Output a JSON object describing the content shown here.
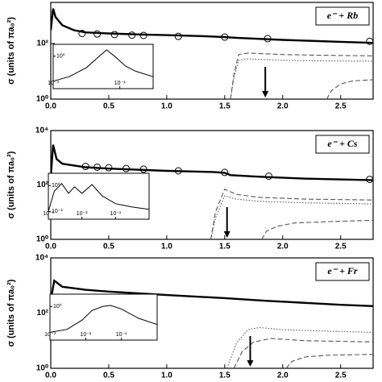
{
  "chart_data": [
    {
      "type": "line",
      "title": "e⁻ + Rb",
      "ylabel": "σ (units of πa₀²)",
      "log_scale": true,
      "xlim": [
        0,
        2.78
      ],
      "xticks": [
        {
          "value": 0,
          "label": "0.0"
        },
        0.5,
        {
          "value": 1,
          "label": "1.0"
        },
        1.5,
        {
          "value": 2,
          "label": "2.0"
        },
        2.5
      ],
      "ylim": [
        1,
        3000
      ],
      "yticks": [
        {
          "value": 1,
          "label": "10⁰"
        },
        {
          "value": 100,
          "label": "10²"
        }
      ],
      "series": [
        {
          "style": "thick",
          "color": "#000000",
          "x": [
            0,
            0.02,
            0.04,
            0.1,
            0.2,
            0.3,
            0.5,
            0.8,
            1.0,
            1.3,
            1.5,
            1.6,
            2.0,
            2.5,
            2.78
          ],
          "values": [
            300,
            1800,
            900,
            450,
            300,
            250,
            230,
            210,
            200,
            185,
            170,
            160,
            135,
            115,
            105
          ]
        },
        {
          "style": "circles",
          "color": "#000000",
          "x": [
            0.27,
            0.4,
            0.55,
            0.7,
            0.8,
            1.1,
            1.5,
            1.87,
            2.75
          ],
          "values": [
            230,
            220,
            210,
            200,
            195,
            180,
            170,
            150,
            120
          ]
        },
        {
          "style": "dashed",
          "color": "#555555",
          "x": [
            1.55,
            1.58,
            1.62,
            1.7,
            2.0,
            2.3,
            2.78
          ],
          "values": [
            1,
            8,
            40,
            45,
            40,
            38,
            36
          ]
        },
        {
          "style": "dotted",
          "color": "#555555",
          "x": [
            1.55,
            1.58,
            1.62,
            1.7,
            2.0,
            2.3,
            2.78
          ],
          "values": [
            1,
            6,
            25,
            28,
            25,
            24,
            23
          ]
        },
        {
          "style": "dashed",
          "color": "#555555",
          "x": [
            2.38,
            2.42,
            2.5,
            2.6,
            2.78
          ],
          "values": [
            1,
            2,
            3.5,
            4.5,
            5
          ]
        }
      ],
      "arrow": {
        "x": 1.85
      },
      "inset": {
        "xlim": [
          0.001,
          1
        ],
        "xticks": [
          {
            "value": 0.001,
            "label": "10⁻³"
          },
          {
            "value": 0.1,
            "label": "10⁻¹"
          }
        ],
        "ylim": [
          0.05,
          3
        ],
        "yticks": [
          {
            "value": 1,
            "label": "10⁰"
          }
        ],
        "x": [
          0.001,
          0.003,
          0.01,
          0.02,
          0.04,
          0.07,
          0.15,
          0.3,
          1
        ],
        "values": [
          0.1,
          0.15,
          0.35,
          0.8,
          1.8,
          1,
          0.4,
          0.25,
          0.15
        ]
      }
    },
    {
      "type": "line",
      "title": "e⁻ + Cs",
      "ylabel": "σ (units of πa₀²)",
      "log_scale": true,
      "xlim": [
        0,
        2.78
      ],
      "xticks": [
        {
          "value": 0,
          "label": "0.0"
        },
        0.5,
        {
          "value": 1,
          "label": "1.0"
        },
        1.5,
        {
          "value": 2,
          "label": "2.0"
        },
        2.5
      ],
      "ylim": [
        1,
        10000
      ],
      "yticks": [
        {
          "value": 1,
          "label": "10⁰"
        },
        {
          "value": 100,
          "label": "10²"
        },
        {
          "value": 10000,
          "label": "10⁴"
        }
      ],
      "series": [
        {
          "style": "thick",
          "color": "#000000",
          "x": [
            0,
            0.02,
            0.05,
            0.1,
            0.3,
            0.5,
            1.0,
            1.4,
            1.5,
            1.55,
            1.8,
            2.2,
            2.78
          ],
          "values": [
            200,
            3000,
            900,
            600,
            450,
            400,
            330,
            300,
            280,
            230,
            200,
            170,
            150
          ]
        },
        {
          "style": "circles",
          "color": "#000000",
          "x": [
            0.3,
            0.4,
            0.5,
            0.65,
            0.8,
            1.1,
            1.5,
            1.88,
            2.75
          ],
          "values": [
            480,
            450,
            430,
            400,
            380,
            330,
            290,
            210,
            160
          ]
        },
        {
          "style": "dashed",
          "color": "#555555",
          "x": [
            1.38,
            1.42,
            1.5,
            1.6,
            1.8,
            2.2,
            2.78
          ],
          "values": [
            1,
            10,
            70,
            45,
            35,
            30,
            28
          ]
        },
        {
          "style": "dotted",
          "color": "#555555",
          "x": [
            1.38,
            1.42,
            1.5,
            1.6,
            1.8,
            2.2,
            2.78
          ],
          "values": [
            1,
            6,
            40,
            30,
            25,
            22,
            20
          ]
        },
        {
          "style": "dashed",
          "color": "#555555",
          "x": [
            1.82,
            1.86,
            1.95,
            2.1,
            2.4,
            2.78
          ],
          "values": [
            1,
            2,
            3,
            4,
            4.5,
            5
          ]
        }
      ],
      "arrow": {
        "x": 1.52
      },
      "inset": {
        "xlim": [
          0.001,
          1
        ],
        "xticks": [
          {
            "value": 0.001,
            "label": "10⁻³"
          },
          {
            "value": 0.01,
            "label": "10⁻²"
          },
          {
            "value": 0.1,
            "label": "10⁻¹"
          }
        ],
        "ylim": [
          0.05,
          3
        ],
        "yticks": [
          {
            "value": 0.1,
            "label": "10⁻¹"
          },
          {
            "value": 1,
            "label": "10⁰"
          }
        ],
        "x": [
          0.001,
          0.0015,
          0.0025,
          0.004,
          0.006,
          0.01,
          0.02,
          0.04,
          0.1,
          0.3,
          1
        ],
        "values": [
          0.1,
          0.6,
          1.2,
          0.5,
          0.9,
          0.5,
          1.1,
          0.4,
          0.2,
          0.15,
          0.12
        ]
      }
    },
    {
      "type": "line",
      "title": "e⁻ + Fr",
      "ylabel": "σ (units of πa₀²)",
      "log_scale": true,
      "xlim": [
        0,
        2.78
      ],
      "xticks": [
        {
          "value": 0,
          "label": "0.0"
        },
        0.5,
        {
          "value": 1,
          "label": "1.0"
        },
        1.5,
        {
          "value": 2,
          "label": "2.0"
        },
        2.5
      ],
      "ylim": [
        1,
        10000
      ],
      "yticks": [
        {
          "value": 1,
          "label": "10⁰"
        },
        {
          "value": 100,
          "label": "10²"
        },
        {
          "value": 10000,
          "label": "10⁴"
        }
      ],
      "series": [
        {
          "style": "thick",
          "color": "#000000",
          "x": [
            0,
            0.03,
            0.1,
            0.3,
            0.5,
            1.0,
            1.5,
            1.85,
            2.0,
            2.5,
            2.78
          ],
          "values": [
            300,
            1500,
            900,
            700,
            600,
            450,
            350,
            280,
            260,
            200,
            180
          ]
        },
        {
          "style": "dotted",
          "color": "#555555",
          "x": [
            1.52,
            1.6,
            1.7,
            1.8,
            2.0,
            2.4,
            2.78
          ],
          "values": [
            1,
            8,
            25,
            30,
            25,
            22,
            20
          ]
        },
        {
          "style": "dashed",
          "color": "#555555",
          "x": [
            1.58,
            1.65,
            1.75,
            1.9,
            2.2,
            2.78
          ],
          "values": [
            1,
            4,
            9,
            12,
            10,
            9
          ]
        },
        {
          "style": "dashed",
          "color": "#555555",
          "x": [
            2.03,
            2.08,
            2.2,
            2.4,
            2.78
          ],
          "values": [
            1,
            1.8,
            2.6,
            3,
            3.2
          ]
        }
      ],
      "arrow": {
        "x": 1.72
      },
      "inset": {
        "xlim": [
          0.001,
          1
        ],
        "xticks": [
          {
            "value": 0.001,
            "label": "10⁻³"
          },
          {
            "value": 0.01,
            "label": "10⁻²"
          },
          {
            "value": 0.1,
            "label": "10⁻¹"
          }
        ],
        "ylim": [
          0.05,
          3
        ],
        "yticks": [
          {
            "value": 1,
            "label": "10⁰"
          }
        ],
        "x": [
          0.001,
          0.003,
          0.008,
          0.015,
          0.03,
          0.05,
          0.1,
          0.3,
          1
        ],
        "values": [
          0.1,
          0.13,
          0.3,
          0.7,
          1,
          1.1,
          0.8,
          0.35,
          0.2
        ]
      }
    }
  ]
}
